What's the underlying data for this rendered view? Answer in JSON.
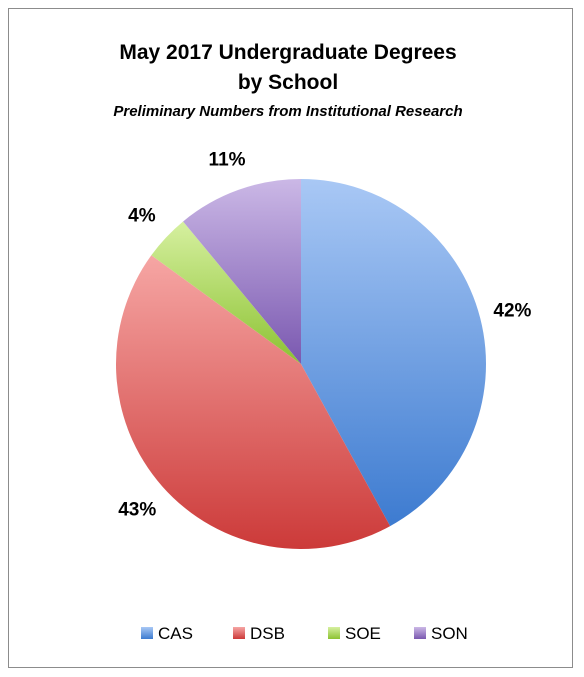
{
  "chart_data": {
    "type": "pie",
    "title": "May 2017 Undergraduate Degrees by School",
    "title_lines": [
      "May 2017 Undergraduate Degrees",
      "by School"
    ],
    "subtitle": "Preliminary Numbers from Institutional Research",
    "categories": [
      "CAS",
      "DSB",
      "SOE",
      "SON"
    ],
    "values": [
      42,
      43,
      4,
      11
    ],
    "labels": [
      "42%",
      "43%",
      "4%",
      "11%"
    ],
    "colors": {
      "CAS": [
        "#a9c8f5",
        "#3d7bd0"
      ],
      "DSB": [
        "#f6a6a4",
        "#cc3a39"
      ],
      "SOE": [
        "#d6f0a0",
        "#8cc232"
      ],
      "SON": [
        "#cbb8e6",
        "#7a58b0"
      ]
    },
    "legend_position": "bottom"
  }
}
